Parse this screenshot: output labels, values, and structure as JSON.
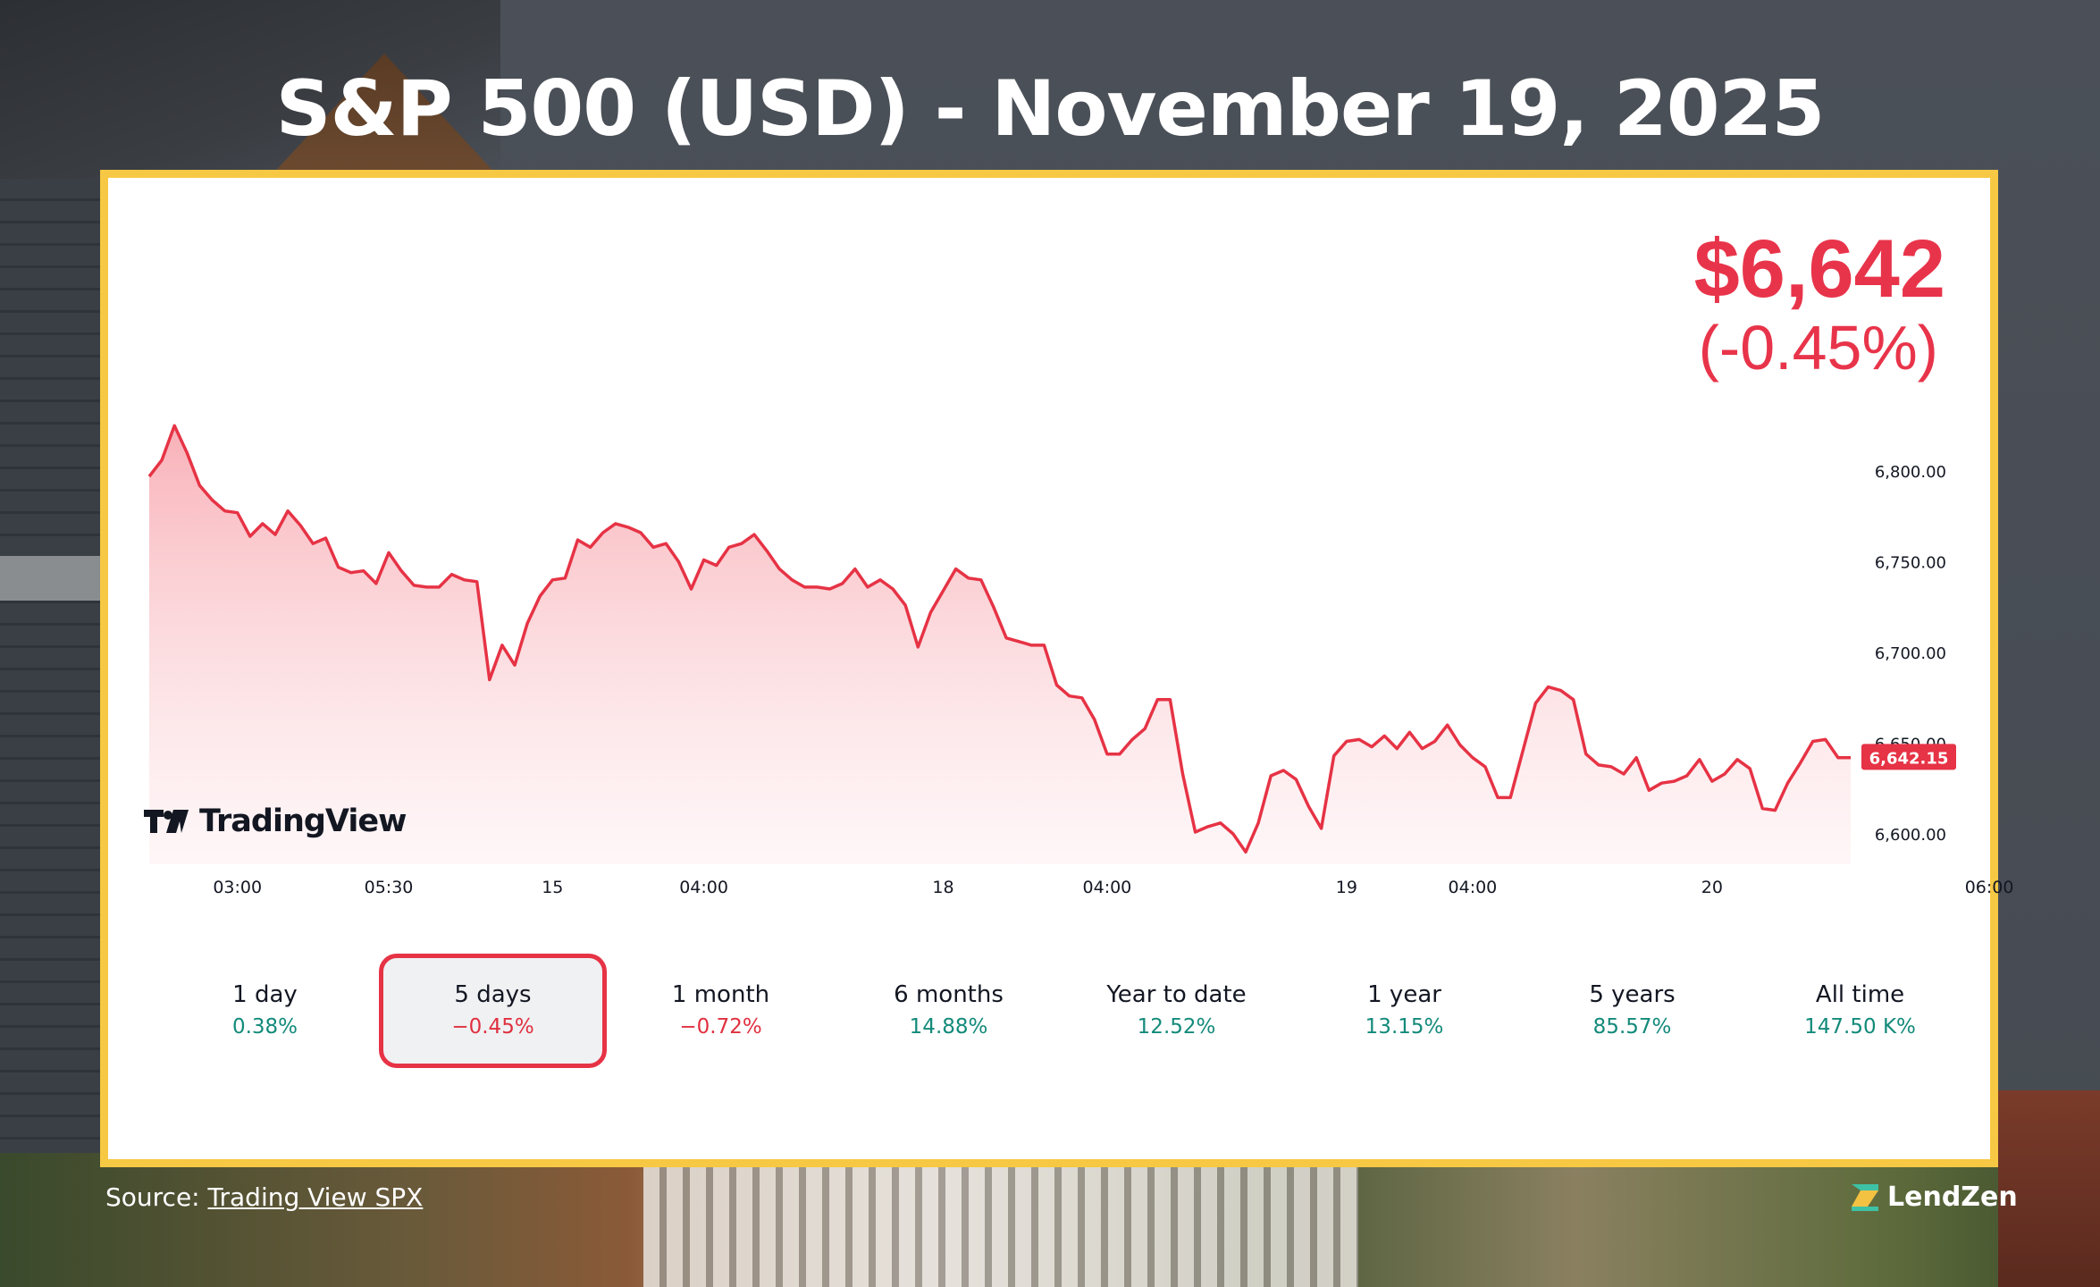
{
  "header": {
    "title": "S&P 500 (USD) - November 19, 2025"
  },
  "quote": {
    "price": "$6,642",
    "change": "(-0.45%)"
  },
  "colors": {
    "frame": "#f7c843",
    "line": "#e63345",
    "negative": "#e0303f",
    "positive": "#138a7a"
  },
  "branding": {
    "platform": "TradingView",
    "company": "LendZen"
  },
  "source": {
    "prefix": "Source: ",
    "link_text": "Trading View SPX"
  },
  "periods": [
    {
      "label": "1 day",
      "value": "0.38%",
      "direction": "pos",
      "selected": false
    },
    {
      "label": "5 days",
      "value": "−0.45%",
      "direction": "neg",
      "selected": true
    },
    {
      "label": "1 month",
      "value": "−0.72%",
      "direction": "neg",
      "selected": false
    },
    {
      "label": "6 months",
      "value": "14.88%",
      "direction": "pos",
      "selected": false
    },
    {
      "label": "Year to date",
      "value": "12.52%",
      "direction": "pos",
      "selected": false
    },
    {
      "label": "1 year",
      "value": "13.15%",
      "direction": "pos",
      "selected": false
    },
    {
      "label": "5 years",
      "value": "85.57%",
      "direction": "pos",
      "selected": false
    },
    {
      "label": "All time",
      "value": "147.50 K%",
      "direction": "pos",
      "selected": false
    }
  ],
  "chart_data": {
    "type": "area",
    "title": "",
    "xlabel": "",
    "ylabel": "",
    "ylim": [
      6585,
      6835
    ],
    "y_ticks": [
      6600,
      6650,
      6700,
      6750,
      6800
    ],
    "y_tick_labels": [
      "6,600.00",
      "6,650.00",
      "6,700.00",
      "6,750.00",
      "6,800.00"
    ],
    "x_tick_labels": [
      "03:00",
      "05:30",
      "15",
      "04:00",
      "18",
      "04:00",
      "19",
      "04:00",
      "20",
      "06:00"
    ],
    "x_tick_index": [
      7,
      19,
      32,
      44,
      63,
      76,
      95,
      105,
      124,
      146
    ],
    "last_value": 6642.15,
    "last_value_label": "6,642.15",
    "grid": false,
    "series": [
      {
        "values": [
          6797,
          6806,
          6825,
          6810,
          6792,
          6784,
          6778,
          6777,
          6764,
          6771,
          6765,
          6778,
          6770,
          6760,
          6763,
          6747,
          6744,
          6745,
          6738,
          6755,
          6745,
          6737,
          6736,
          6736,
          6743,
          6740,
          6739,
          6685,
          6704,
          6693,
          6716,
          6731,
          6740,
          6741,
          6762,
          6758,
          6766,
          6771,
          6769,
          6766,
          6758,
          6760,
          6750,
          6735,
          6751,
          6748,
          6758,
          6760,
          6765,
          6756,
          6746,
          6740,
          6736,
          6736,
          6735,
          6738,
          6746,
          6736,
          6740,
          6735,
          6726,
          6703,
          6722,
          6734,
          6746,
          6741,
          6740,
          6725,
          6708,
          6706,
          6704,
          6704,
          6682,
          6676,
          6675,
          6663,
          6644,
          6644,
          6652,
          6658,
          6674,
          6674,
          6633,
          6601,
          6604,
          6606,
          6600,
          6590,
          6606,
          6632,
          6635,
          6630,
          6615,
          6603,
          6643,
          6651,
          6652,
          6648,
          6654,
          6647,
          6656,
          6647,
          6651,
          6660,
          6649,
          6642,
          6637,
          6620,
          6620,
          6646,
          6672,
          6681,
          6679,
          6674,
          6644,
          6638,
          6637,
          6633,
          6642,
          6624,
          6628,
          6629,
          6632,
          6641,
          6629,
          6633,
          6641,
          6636,
          6614,
          6613,
          6628,
          6639,
          6651,
          6652,
          6642,
          6642
        ]
      }
    ]
  }
}
